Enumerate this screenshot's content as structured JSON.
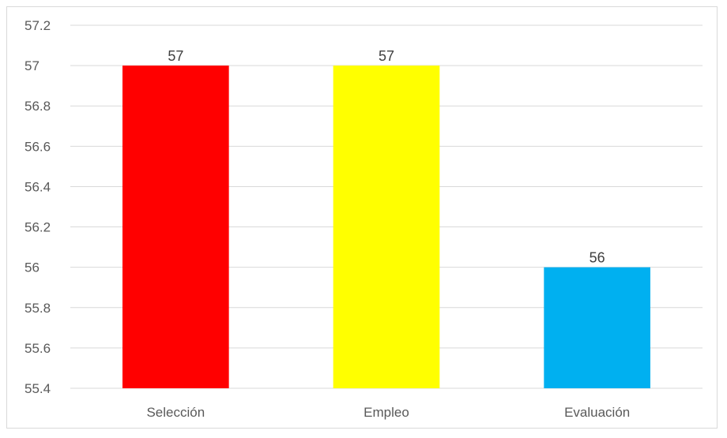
{
  "chart_data": {
    "type": "bar",
    "title": "",
    "xlabel": "",
    "ylabel": "",
    "categories": [
      "Selección",
      "Empleo",
      "Evaluación"
    ],
    "values": [
      57,
      57,
      56
    ],
    "data_labels": [
      "57",
      "57",
      "56"
    ],
    "bar_colors": [
      "#ff0000",
      "#ffff00",
      "#00b0f0"
    ],
    "ylim": [
      55.4,
      57.2
    ],
    "yticks": [
      55.4,
      55.6,
      55.8,
      56,
      56.2,
      56.4,
      56.6,
      56.8,
      57,
      57.2
    ],
    "ytick_labels": [
      "55.4",
      "55.6",
      "55.8",
      "56",
      "56.2",
      "56.4",
      "56.6",
      "56.8",
      "57",
      "57.2"
    ],
    "grid": true,
    "legend": "none"
  }
}
